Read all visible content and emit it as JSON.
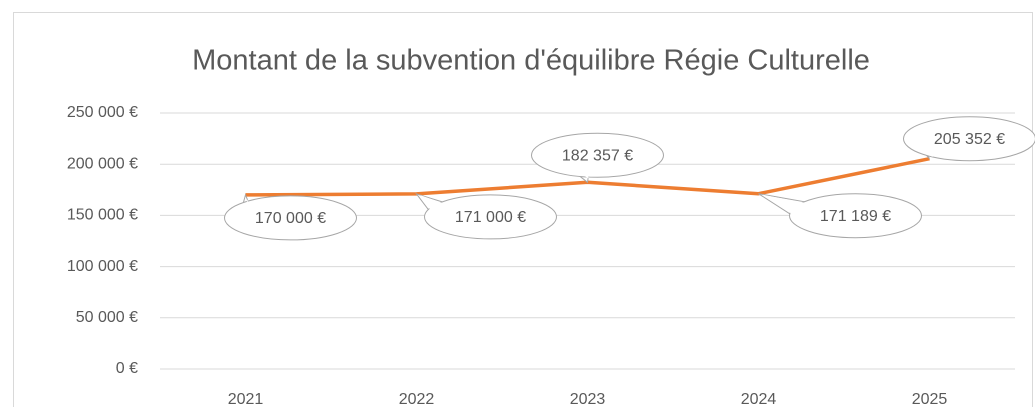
{
  "chart_data": {
    "type": "line",
    "title": "Montant de la subvention d'équilibre Régie Culturelle",
    "categories": [
      "2021",
      "2022",
      "2023",
      "2024",
      "2025"
    ],
    "series": [
      {
        "color": "#ed7d31",
        "values": [
          170000,
          171000,
          182357,
          171189,
          205352
        ],
        "value_labels": [
          "170 000 €",
          "171 000 €",
          "182 357 €",
          "171 189 €",
          "205 352 €"
        ]
      }
    ],
    "ylim": [
      0,
      250000
    ],
    "yticks": [
      {
        "value": 0,
        "label": "0 €"
      },
      {
        "value": 50000,
        "label": "50 000 €"
      },
      {
        "value": 100000,
        "label": "100 000 €"
      },
      {
        "value": 150000,
        "label": "150 000 €"
      },
      {
        "value": 200000,
        "label": "200 000 €"
      },
      {
        "value": 250000,
        "label": "250 000 €"
      }
    ],
    "grid": true
  }
}
